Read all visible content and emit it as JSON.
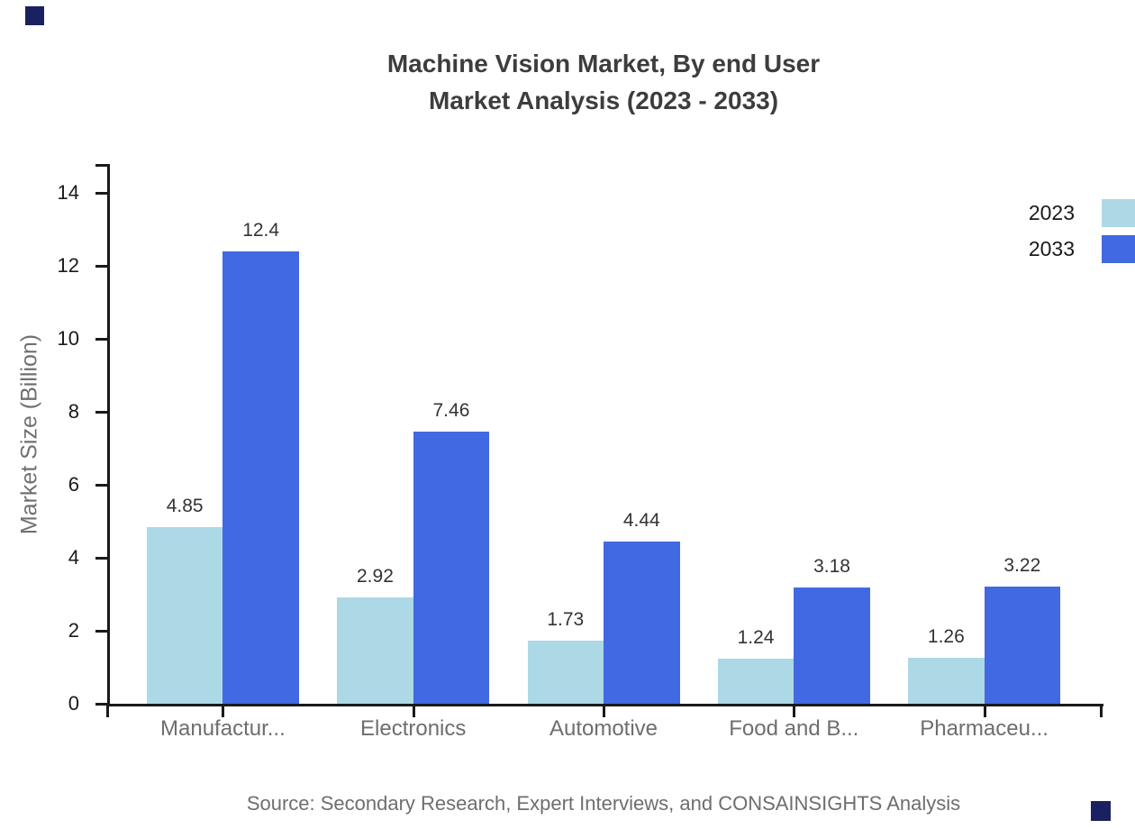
{
  "title": {
    "line1": "Machine Vision Market, By end User",
    "line2": "Market Analysis (2023 - 2033)"
  },
  "chart_data": {
    "type": "bar",
    "categories": [
      "Manufactur...",
      "Electronics",
      "Automotive",
      "Food and B...",
      "Pharmaceu..."
    ],
    "series": [
      {
        "name": "2023",
        "color": "#add8e6",
        "values": [
          4.85,
          2.92,
          1.73,
          1.24,
          1.26
        ]
      },
      {
        "name": "2033",
        "color": "#4169e1",
        "values": [
          12.4,
          7.46,
          4.44,
          3.18,
          3.22
        ]
      }
    ],
    "ylabel": "Market Size (Billion)",
    "xlabel": "",
    "yticks": [
      0,
      2,
      4,
      6,
      8,
      10,
      12,
      14
    ],
    "ylim": [
      0,
      14.8
    ],
    "grid": false,
    "legend_position": "top-right",
    "value_labels_shown": true
  },
  "source_note": "Source: Secondary Research, Expert Interviews, and CONSAINSIGHTS Analysis",
  "colors": {
    "series_2023": "#add8e6",
    "series_2033": "#4169e1",
    "axis": "#1a1a1a",
    "title_text": "#3d3d3d",
    "category_text": "#6e6e6e",
    "value_label_text": "#333333",
    "source_text": "#6e6e6e",
    "corner_mark": "#1a2160"
  }
}
